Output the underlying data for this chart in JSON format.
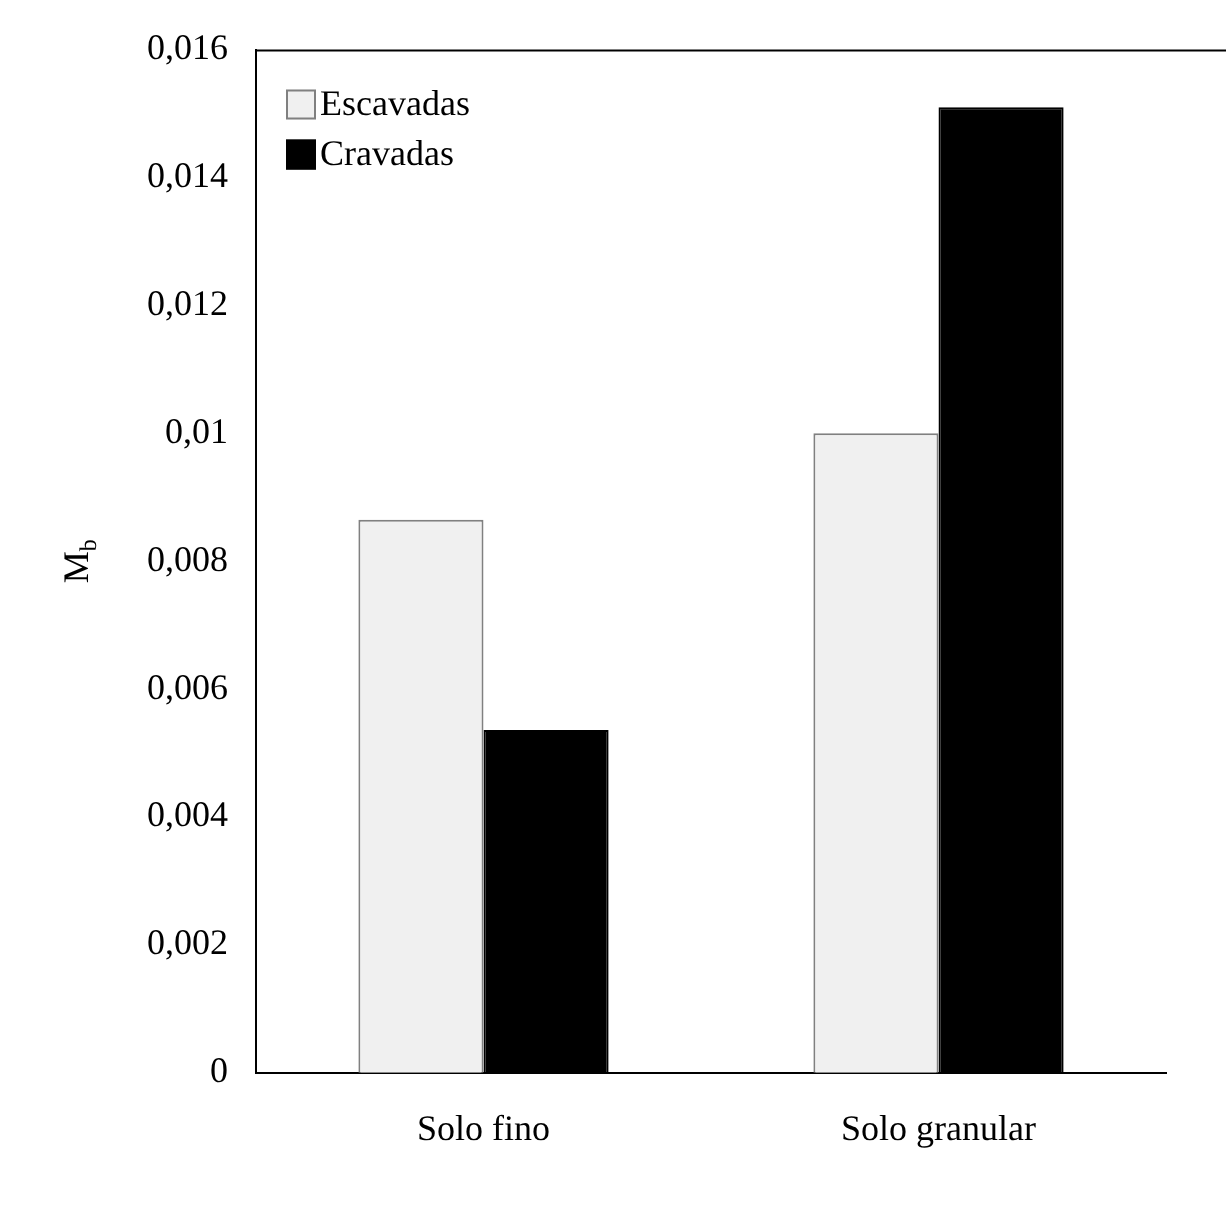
{
  "chart_data": {
    "type": "bar",
    "ylabel": "M$_{b}$",
    "categories": [
      "Solo fino",
      "Solo granular"
    ],
    "series": [
      {
        "name": "Escavadas",
        "color": "#f0f0f0",
        "values": [
          0.00865,
          0.01
        ]
      },
      {
        "name": "Cravadas",
        "color": "#000000",
        "values": [
          0.00536,
          0.0151
        ]
      }
    ],
    "ylim": [
      0,
      0.016
    ],
    "yticks": [
      0,
      {
        "value": 0.002,
        "label": "0,002"
      },
      {
        "value": 0.004,
        "label": "0,004"
      },
      {
        "value": 0.006,
        "label": "0,006"
      },
      {
        "value": 0.008,
        "label": "0,008"
      },
      {
        "value": 0.01,
        "label": "0,01"
      },
      {
        "value": 0.012,
        "label": "0,012"
      },
      {
        "value": 0.014,
        "label": "0,014"
      },
      {
        "value": 0.016,
        "label": "0,016"
      }
    ],
    "grid": false,
    "legend": "top left"
  }
}
